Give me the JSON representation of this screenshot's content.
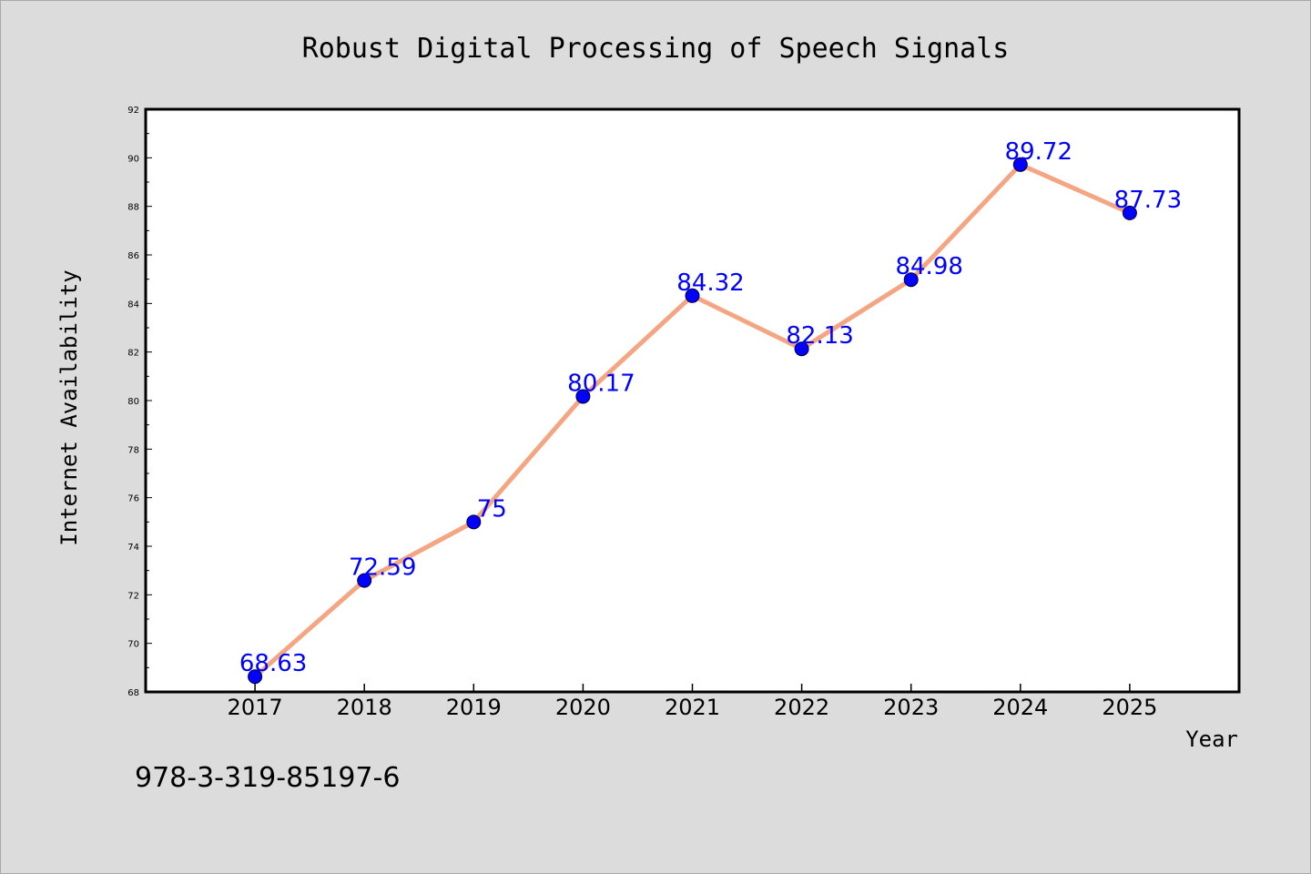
{
  "chart_data": {
    "type": "line",
    "title": "Robust Digital Processing of Speech Signals",
    "xlabel": "Year",
    "ylabel": "Internet Availability",
    "categories": [
      "2017",
      "2018",
      "2019",
      "2020",
      "2021",
      "2022",
      "2023",
      "2024",
      "2025"
    ],
    "data_labels": [
      "68.63",
      "72.59",
      "75",
      "80.17",
      "84.32",
      "82.13",
      "84.98",
      "89.72",
      "87.73"
    ],
    "series": [
      {
        "values": [
          68.63,
          72.59,
          75,
          80.17,
          84.32,
          82.13,
          84.98,
          89.72,
          87.73
        ],
        "line_color": "#f4a582",
        "marker_color": "#0000ff"
      }
    ],
    "x_range": [
      2016.0,
      2026.0
    ],
    "ylim": [
      68,
      92
    ],
    "yticks": [
      "68",
      "70",
      "72",
      "74",
      "76",
      "78",
      "80",
      "82",
      "84",
      "86",
      "88",
      "90",
      "92"
    ],
    "grid": false,
    "legend": "none"
  },
  "annotation": {
    "isbn": "978-3-319-85197-6"
  }
}
